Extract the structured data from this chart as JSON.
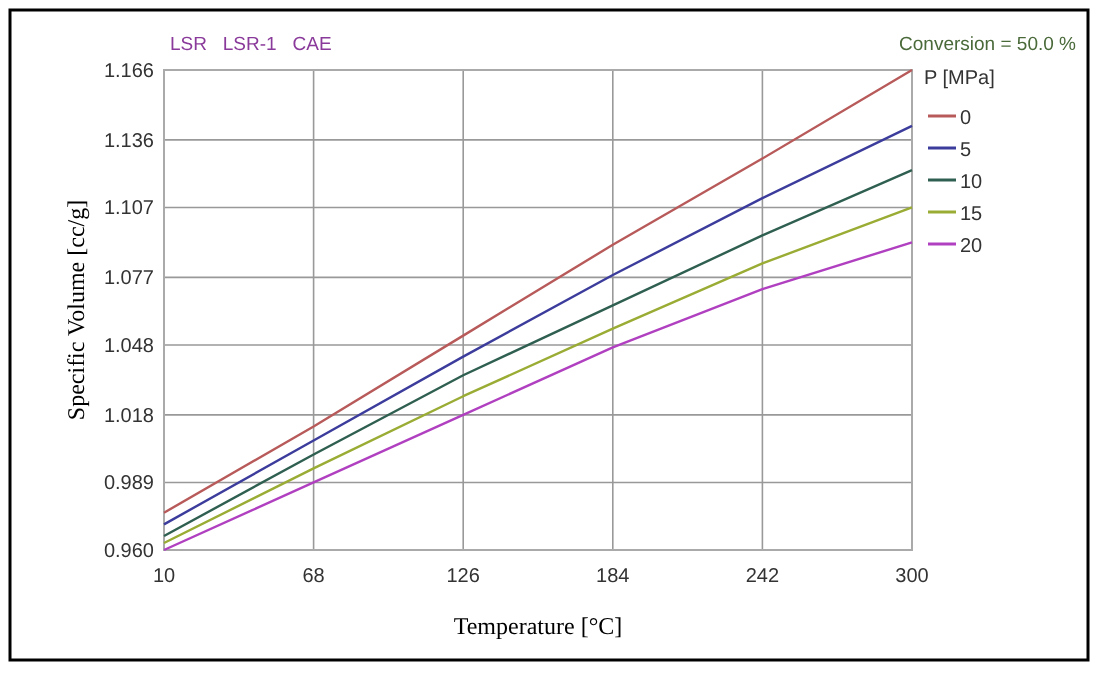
{
  "chart_data": {
    "type": "line",
    "xlabel": "Temperature  [°C]",
    "ylabel": "Specific  Volume  [cc/g]",
    "legend_title": "P [MPa]",
    "legend": "right",
    "grid": true,
    "marker": "none",
    "line_style": "solid",
    "annotations": [
      "LSR   LSR-1   CAE",
      "Conversion = 50.0 %"
    ],
    "x": [
      10,
      68,
      126,
      184,
      242,
      300
    ],
    "xlim": [
      10,
      300
    ],
    "xticks": [
      10,
      68,
      126,
      184,
      242,
      300
    ],
    "ylim": [
      0.96,
      1.166
    ],
    "yticks": [
      {
        "value": 0.96,
        "label": "0.960"
      },
      {
        "value": 0.989,
        "label": "0.989"
      },
      {
        "value": 1.018,
        "label": "1.018"
      },
      {
        "value": 1.048,
        "label": "1.048"
      },
      {
        "value": 1.077,
        "label": "1.077"
      },
      {
        "value": 1.107,
        "label": "1.107"
      },
      {
        "value": 1.136,
        "label": "1.136"
      },
      {
        "value": 1.166,
        "label": "1.166"
      }
    ],
    "series": [
      {
        "name": "0",
        "color": "#b85a5a",
        "values": [
          0.976,
          1.013,
          1.052,
          1.091,
          1.128,
          1.166
        ]
      },
      {
        "name": "5",
        "color": "#3c3c9c",
        "values": [
          0.971,
          1.007,
          1.043,
          1.078,
          1.111,
          1.142
        ]
      },
      {
        "name": "10",
        "color": "#2f5f50",
        "values": [
          0.966,
          1.001,
          1.035,
          1.065,
          1.095,
          1.123
        ]
      },
      {
        "name": "15",
        "color": "#9aac34",
        "values": [
          0.963,
          0.995,
          1.026,
          1.055,
          1.083,
          1.107
        ]
      },
      {
        "name": "20",
        "color": "#b040c0",
        "values": [
          0.96,
          0.989,
          1.018,
          1.047,
          1.072,
          1.092
        ]
      }
    ]
  }
}
